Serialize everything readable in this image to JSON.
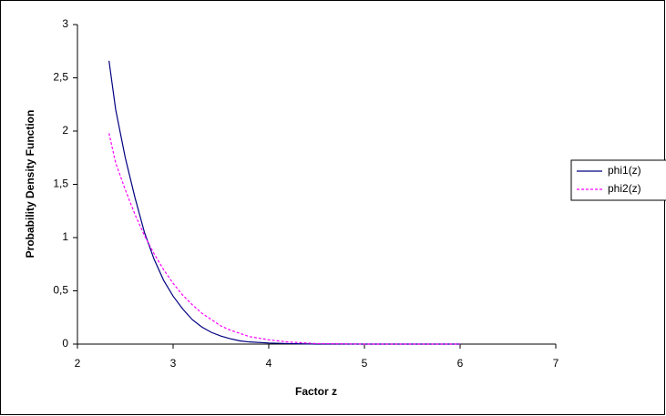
{
  "chart_data": {
    "type": "line",
    "x_label": "Factor z",
    "y_label": "Probability Density Function",
    "x": [
      2.33,
      2.4,
      2.5,
      2.6,
      2.7,
      2.8,
      2.9,
      3.0,
      3.1,
      3.2,
      3.3,
      3.4,
      3.5,
      3.6,
      3.7,
      3.8,
      4.0,
      4.2,
      4.5,
      5.0,
      5.5,
      6.0
    ],
    "series": [
      {
        "name": "phi1(z)",
        "color": "#000080",
        "dashed": false,
        "values": [
          2.66,
          2.2,
          1.75,
          1.38,
          1.05,
          0.8,
          0.6,
          0.45,
          0.33,
          0.23,
          0.16,
          0.11,
          0.075,
          0.05,
          0.03,
          0.02,
          0.01,
          0.005,
          0,
          0,
          0,
          0
        ]
      },
      {
        "name": "phi2(z)",
        "color": "#ff00ff",
        "dashed": true,
        "values": [
          1.98,
          1.7,
          1.45,
          1.22,
          1.02,
          0.85,
          0.7,
          0.57,
          0.46,
          0.37,
          0.29,
          0.23,
          0.17,
          0.13,
          0.1,
          0.07,
          0.04,
          0.02,
          0.005,
          0,
          0,
          0
        ]
      }
    ],
    "xlim": [
      2,
      7
    ],
    "xticks": [
      2,
      3,
      4,
      5,
      6,
      7
    ],
    "ylim": [
      0,
      3
    ],
    "yticks": [
      0,
      {
        "value": 0.5,
        "label": "0,5"
      },
      1,
      {
        "value": 1.5,
        "label": "1,5"
      },
      2,
      {
        "value": 2.5,
        "label": "2,5"
      },
      3
    ],
    "grid": false,
    "legend": "right"
  }
}
